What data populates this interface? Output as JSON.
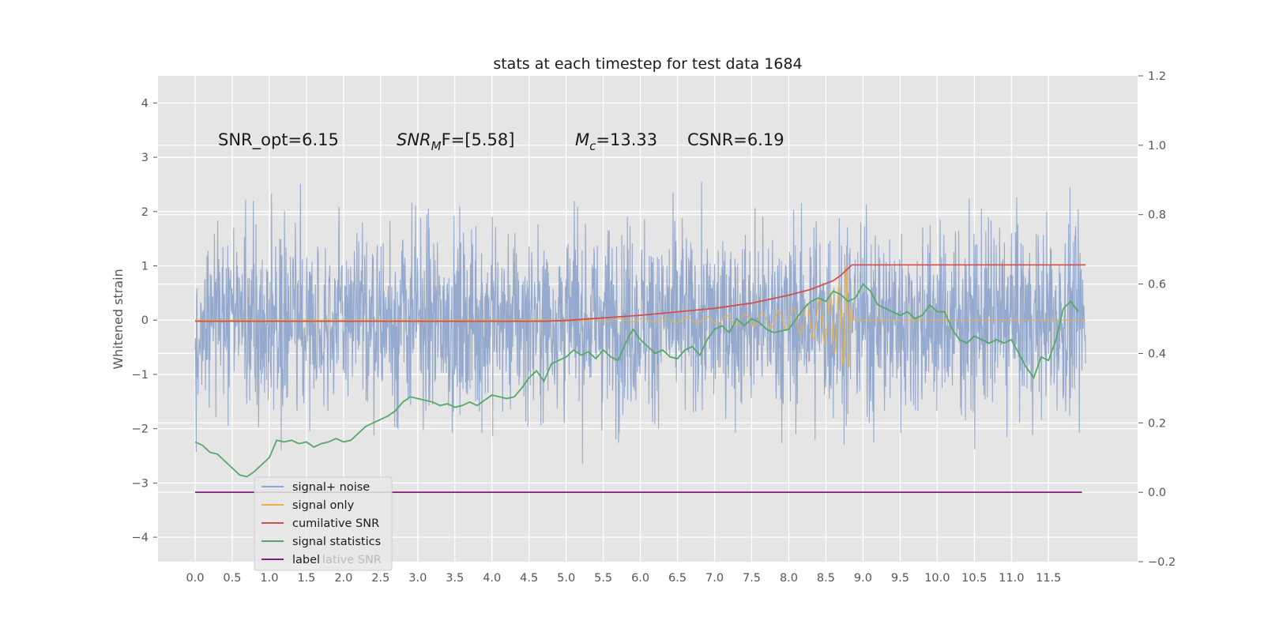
{
  "chart_data": {
    "type": "line",
    "title": "stats at each timestep for test data 1684",
    "ylabel": "Whitened strain",
    "xlim": [
      -0.5,
      12.7
    ],
    "ylim": [
      -4.45,
      4.5
    ],
    "y2lim": [
      -0.2,
      1.2
    ],
    "x_ticks": [
      "0.0",
      "0.5",
      "1.0",
      "1.5",
      "2.0",
      "2.5",
      "3.0",
      "3.5",
      "4.0",
      "4.5",
      "5.0",
      "5.5",
      "6.0",
      "6.5",
      "7.0",
      "7.5",
      "8.0",
      "8.5",
      "9.0",
      "9.5",
      "10.0",
      "10.5",
      "11.0",
      "11.5"
    ],
    "y_ticks": [
      "−4",
      "−3",
      "−2",
      "−1",
      "0",
      "1",
      "2",
      "3",
      "4"
    ],
    "y2_ticks": [
      "−0.2",
      "0.0",
      "0.2",
      "0.4",
      "0.6",
      "0.8",
      "1.0"
    ],
    "y2_ticks_top": "1.2",
    "grid": true,
    "legend_position": "lower-left",
    "annotations": {
      "snr_opt": "SNR_opt=6.15",
      "snr_mf_sym": "SNR",
      "snr_mf_sub": "M",
      "snr_mf_rest": "F=[5.58]",
      "mc_sym": "M",
      "mc_sub": "c",
      "mc_rest": "=13.33",
      "csnr": "CSNR=6.19"
    },
    "series": [
      {
        "name": "signal+ noise",
        "color": "#8fa5cb",
        "axis": "left",
        "description": "whitened strain noise, amplitude approx ±2",
        "range": [
          0,
          12
        ],
        "envelope": [
          -2.0,
          2.0
        ]
      },
      {
        "name": "signal only",
        "color": "#e8b04a",
        "axis": "left",
        "description": "chirp growing toward merger",
        "x": [
          5.0,
          6.0,
          7.0,
          7.5,
          8.0,
          8.3,
          8.5,
          8.7,
          8.8,
          8.85
        ],
        "amp": [
          0.01,
          0.03,
          0.07,
          0.11,
          0.2,
          0.32,
          0.45,
          0.7,
          1.1,
          0.0
        ]
      },
      {
        "name": "cumilative SNR",
        "color": "#d0504d",
        "axis": "right",
        "x": [
          0.0,
          4.7,
          5.0,
          6.0,
          7.0,
          7.5,
          8.0,
          8.3,
          8.6,
          8.7,
          8.8,
          8.85,
          12.0
        ],
        "values": [
          0.493,
          0.493,
          0.495,
          0.51,
          0.53,
          0.545,
          0.568,
          0.585,
          0.61,
          0.625,
          0.645,
          0.655,
          0.655
        ]
      },
      {
        "name": "signal statistics",
        "color": "#55a868",
        "axis": "right",
        "x": [
          0.0,
          0.1,
          0.2,
          0.3,
          0.4,
          0.5,
          0.6,
          0.7,
          0.8,
          0.9,
          1.0,
          1.1,
          1.2,
          1.3,
          1.4,
          1.5,
          1.6,
          1.7,
          1.8,
          1.9,
          2.0,
          2.1,
          2.2,
          2.3,
          2.4,
          2.5,
          2.6,
          2.7,
          2.8,
          2.9,
          3.0,
          3.1,
          3.2,
          3.3,
          3.4,
          3.5,
          3.6,
          3.7,
          3.8,
          3.9,
          4.0,
          4.1,
          4.2,
          4.3,
          4.4,
          4.5,
          4.6,
          4.7,
          4.8,
          4.9,
          5.0,
          5.1,
          5.2,
          5.3,
          5.4,
          5.5,
          5.6,
          5.7,
          5.8,
          5.9,
          6.0,
          6.1,
          6.2,
          6.3,
          6.4,
          6.5,
          6.6,
          6.7,
          6.8,
          6.9,
          7.0,
          7.1,
          7.2,
          7.3,
          7.4,
          7.5,
          7.6,
          7.7,
          7.8,
          7.9,
          8.0,
          8.1,
          8.2,
          8.3,
          8.4,
          8.5,
          8.6,
          8.7,
          8.8,
          8.9,
          9.0,
          9.1,
          9.2,
          9.3,
          9.4,
          9.5,
          9.6,
          9.7,
          9.8,
          9.9,
          10.0,
          10.1,
          10.2,
          10.3,
          10.4,
          10.5,
          10.6,
          10.7,
          10.8,
          10.9,
          11.0,
          11.1,
          11.2,
          11.3,
          11.4,
          11.5,
          11.6,
          11.7,
          11.8,
          11.9
        ],
        "values": [
          0.145,
          0.135,
          0.115,
          0.11,
          0.09,
          0.07,
          0.05,
          0.045,
          0.06,
          0.08,
          0.1,
          0.15,
          0.145,
          0.15,
          0.14,
          0.145,
          0.13,
          0.14,
          0.145,
          0.155,
          0.145,
          0.15,
          0.17,
          0.19,
          0.2,
          0.21,
          0.22,
          0.235,
          0.26,
          0.275,
          0.27,
          0.265,
          0.26,
          0.25,
          0.255,
          0.245,
          0.25,
          0.26,
          0.25,
          0.265,
          0.28,
          0.275,
          0.27,
          0.275,
          0.3,
          0.33,
          0.35,
          0.32,
          0.37,
          0.38,
          0.39,
          0.41,
          0.395,
          0.405,
          0.385,
          0.41,
          0.39,
          0.38,
          0.43,
          0.47,
          0.44,
          0.42,
          0.4,
          0.41,
          0.39,
          0.385,
          0.41,
          0.42,
          0.395,
          0.44,
          0.47,
          0.48,
          0.46,
          0.5,
          0.48,
          0.5,
          0.49,
          0.47,
          0.46,
          0.465,
          0.47,
          0.5,
          0.53,
          0.55,
          0.56,
          0.55,
          0.58,
          0.57,
          0.55,
          0.56,
          0.6,
          0.58,
          0.54,
          0.53,
          0.52,
          0.51,
          0.52,
          0.5,
          0.51,
          0.54,
          0.52,
          0.52,
          0.47,
          0.44,
          0.43,
          0.45,
          0.44,
          0.43,
          0.44,
          0.43,
          0.44,
          0.4,
          0.36,
          0.33,
          0.39,
          0.38,
          0.44,
          0.53,
          0.55,
          0.52
        ]
      },
      {
        "name": "label",
        "color": "#7b1f7b",
        "axis": "right",
        "x": [
          0.0,
          11.95
        ],
        "values": [
          0.0,
          0.0
        ]
      }
    ],
    "legend_ghost_text": "lative SNR"
  }
}
